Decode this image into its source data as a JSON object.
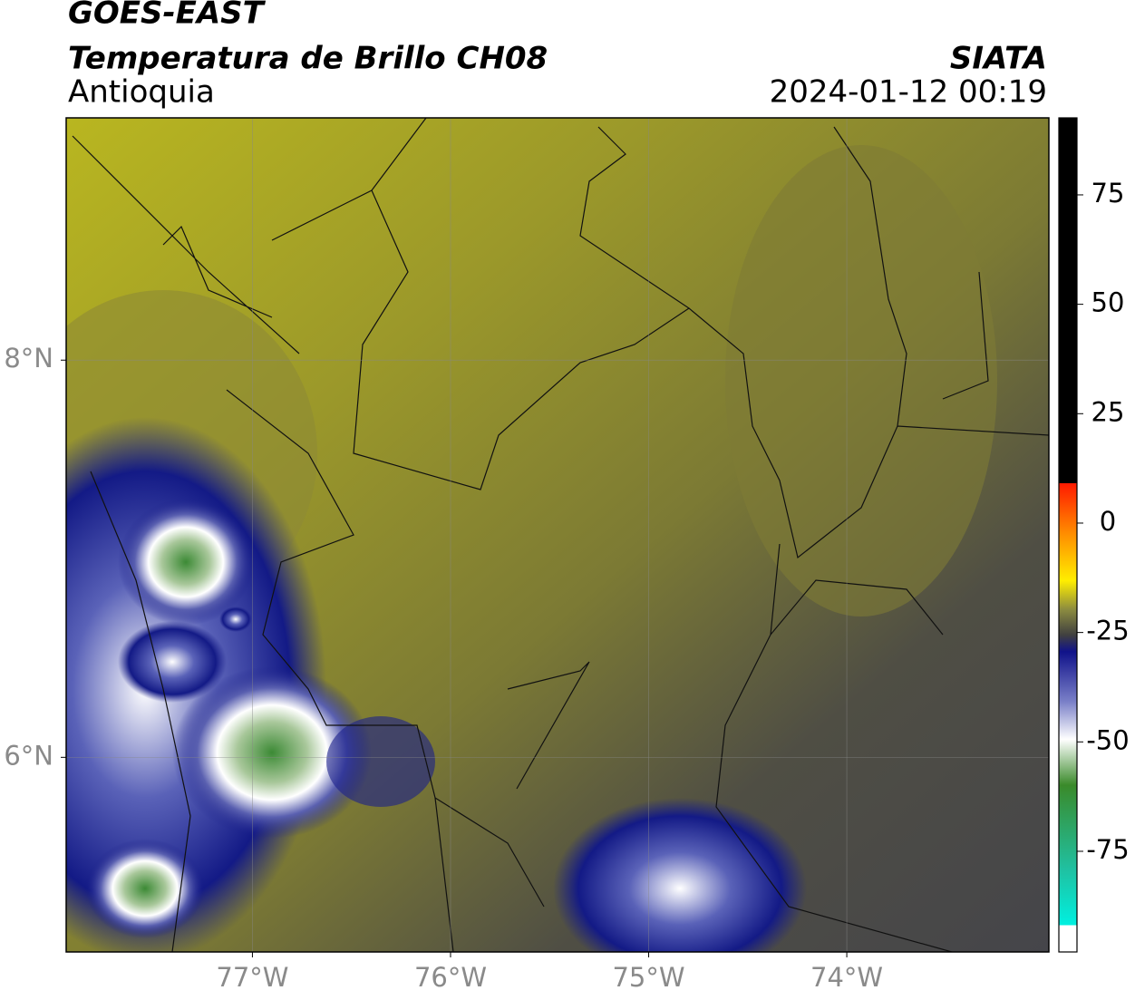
{
  "chart_data": {
    "type": "map",
    "title": "GOES-EAST",
    "subtitle": "Temperatura de Brillo CH08",
    "region": "Antioquia",
    "source": "SIATA",
    "timestamp": "2024-01-12 00:19",
    "xlim": [
      -77.94,
      -72.98
    ],
    "ylim": [
      5.02,
      9.22
    ],
    "xticks": [
      {
        "value": -77,
        "label": "77°W"
      },
      {
        "value": -76,
        "label": "76°W"
      },
      {
        "value": -75,
        "label": "75°W"
      },
      {
        "value": -74,
        "label": "74°W"
      }
    ],
    "yticks": [
      {
        "value": 8,
        "label": "8°N"
      },
      {
        "value": 6,
        "label": "6°N"
      }
    ],
    "grid": true,
    "colorbar": {
      "lim": [
        -98,
        92.6
      ],
      "ticks": [
        75,
        50,
        25,
        0,
        -25,
        -50,
        -75
      ]
    }
  }
}
